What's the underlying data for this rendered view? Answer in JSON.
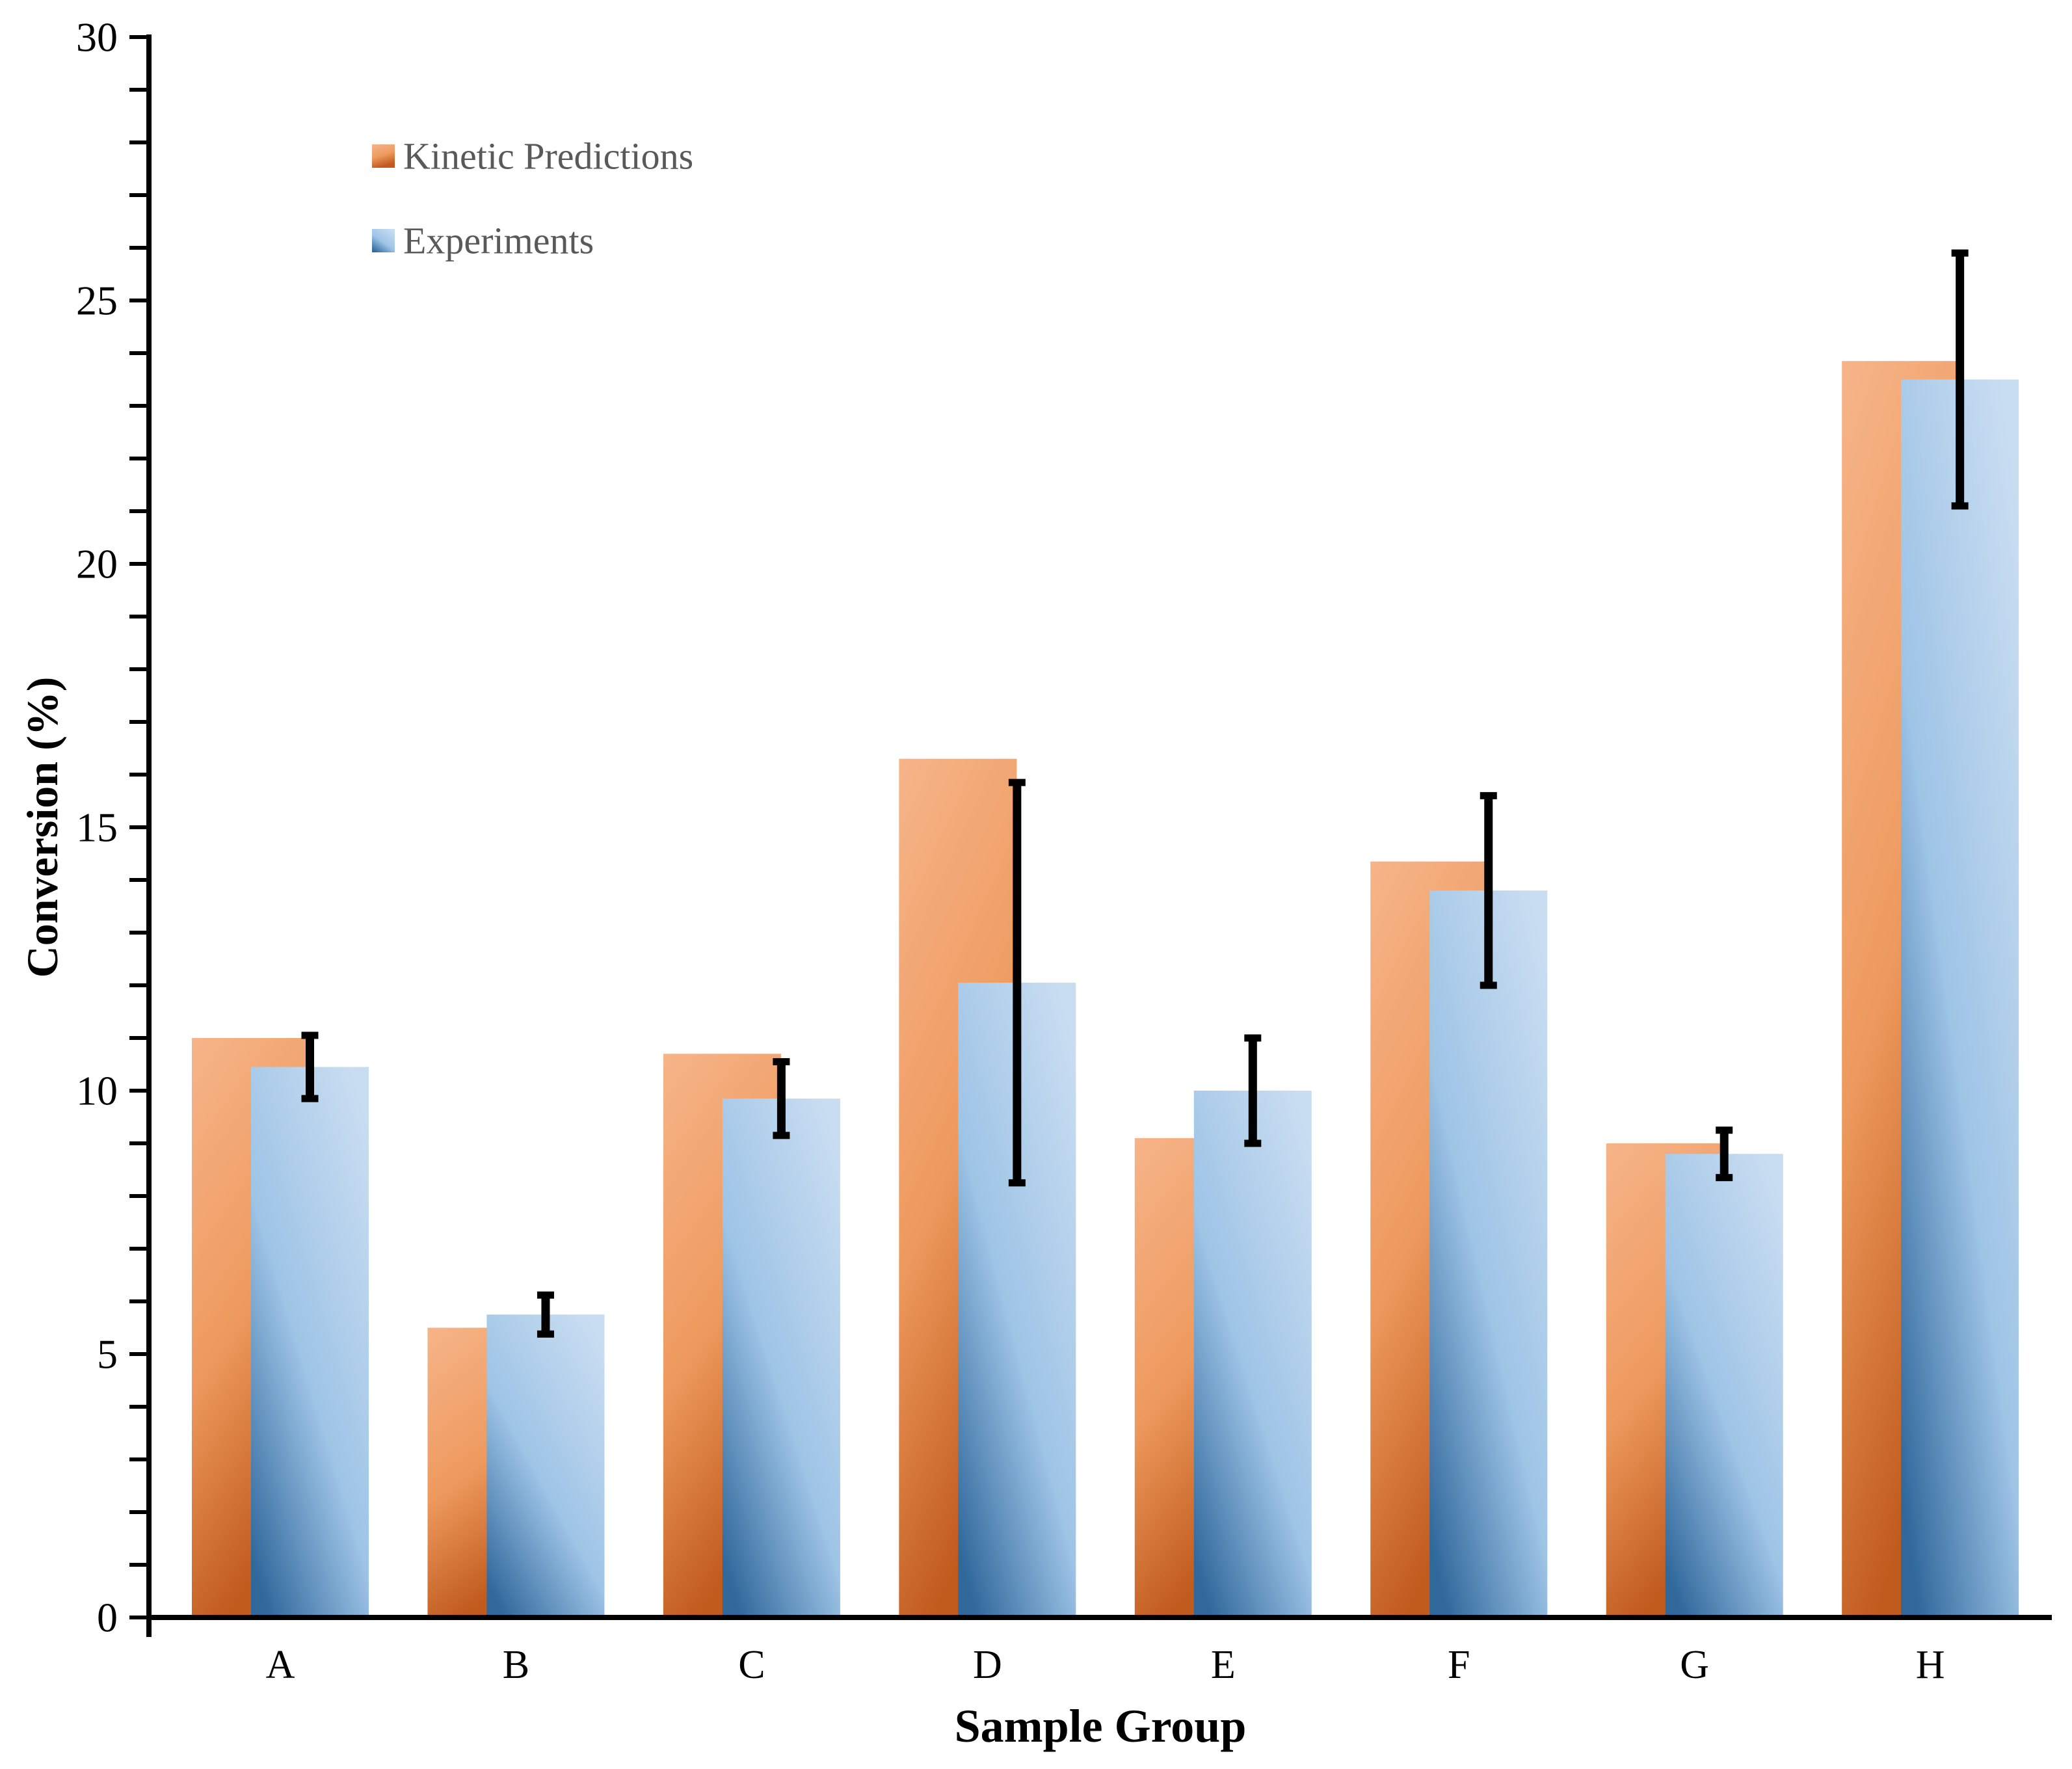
{
  "chart_data": {
    "type": "bar",
    "title": "",
    "xlabel": "Sample Group",
    "ylabel": "Conversion (%)",
    "categories": [
      "A",
      "B",
      "C",
      "D",
      "E",
      "F",
      "G",
      "H"
    ],
    "series": [
      {
        "name": "Kinetic Predictions",
        "values": [
          11.0,
          5.5,
          10.7,
          16.3,
          9.1,
          14.35,
          9.0,
          23.85
        ]
      },
      {
        "name": "Experiments",
        "values": [
          10.45,
          5.75,
          9.85,
          12.05,
          10.0,
          13.8,
          8.8,
          23.5
        ],
        "error_bars": [
          0.6,
          0.37,
          0.7,
          3.8,
          1.0,
          1.8,
          0.45,
          2.4
        ]
      }
    ],
    "ylim": [
      0,
      30
    ],
    "y_major_tick": 5,
    "y_minor_tick": 1,
    "y_tick_labels": [
      "0",
      "5",
      "10",
      "15",
      "20",
      "25",
      "30"
    ],
    "grid": false,
    "legend_position": "upper-left-inside",
    "bar_style": "overlapped-gradient",
    "colors": {
      "kinetic_top": "#f6b489",
      "kinetic_mid": "#ee9a5e",
      "kinetic_bottom": "#c05a1d",
      "experiments_top": "#c9ddf1",
      "experiments_mid": "#9ec4e6",
      "experiments_bottom": "#30689c",
      "axis": "#000000",
      "tick_label": "#000000",
      "axis_title": "#000000",
      "legend_text": "#595959",
      "error_bar": "#000000",
      "background": "#ffffff"
    }
  }
}
